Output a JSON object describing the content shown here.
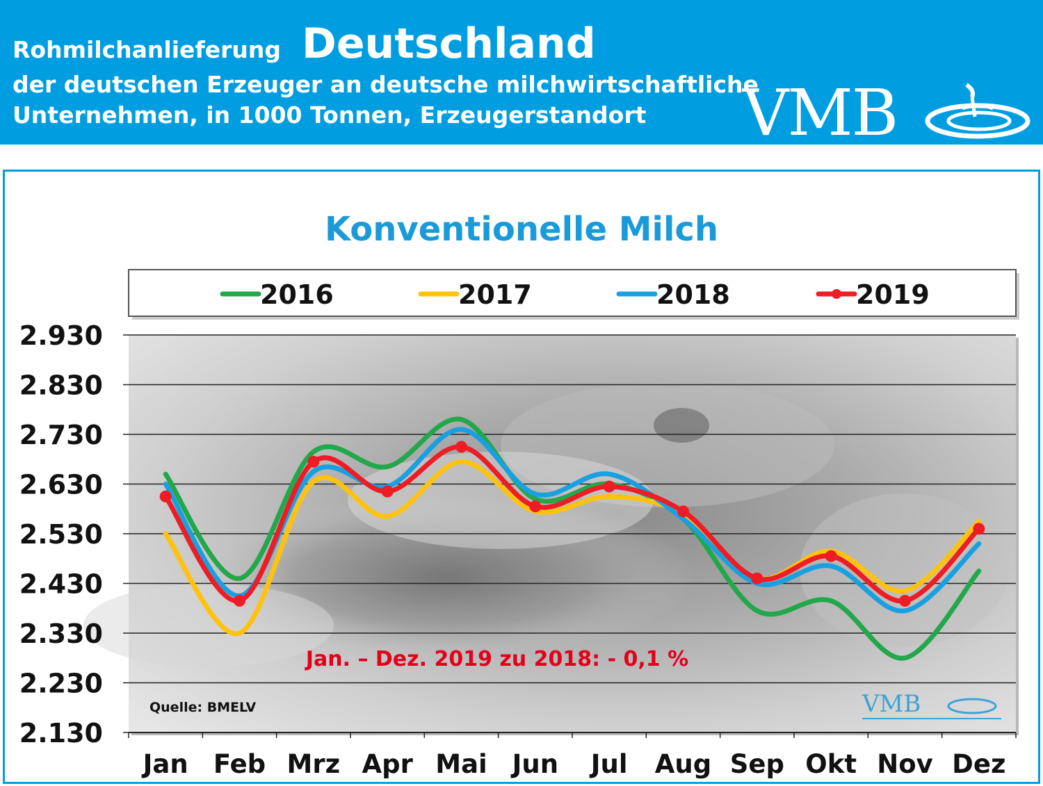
{
  "header": {
    "prefix": "Rohmilchanlieferung",
    "country": "Deutschland",
    "line2": "der deutschen Erzeuger an deutsche milchwirtschaftliche",
    "line3": "Unternehmen, in 1000 Tonnen, Erzeugerstandort",
    "logo": "VMB"
  },
  "colors": {
    "banner": "#009ee0",
    "title": "#1a9ad9",
    "s2016": "#22a84a",
    "s2017": "#ffc20e",
    "s2018": "#1aa0e0",
    "s2019": "#ee1c24",
    "annotation": "#e3001b"
  },
  "chart_data": {
    "type": "line",
    "title": "Konventionelle Milch",
    "categories": [
      "Jan",
      "Feb",
      "Mrz",
      "Apr",
      "Mai",
      "Jun",
      "Jul",
      "Aug",
      "Sep",
      "Okt",
      "Nov",
      "Dez"
    ],
    "yticks": [
      "2.930",
      "2.830",
      "2.730",
      "2.630",
      "2.530",
      "2.430",
      "2.330",
      "2.230",
      "2.130"
    ],
    "ylim": [
      2130,
      2930
    ],
    "grid": true,
    "legend": "top",
    "series": [
      {
        "name": "2016",
        "color": "#22a84a",
        "markers": false,
        "values": [
          2650,
          2440,
          2695,
          2665,
          2760,
          2600,
          2630,
          2560,
          2375,
          2395,
          2280,
          2455
        ]
      },
      {
        "name": "2017",
        "color": "#ffc20e",
        "markers": false,
        "values": [
          2530,
          2330,
          2635,
          2565,
          2675,
          2575,
          2605,
          2570,
          2440,
          2495,
          2415,
          2555
        ]
      },
      {
        "name": "2018",
        "color": "#1aa0e0",
        "markers": false,
        "values": [
          2630,
          2405,
          2655,
          2625,
          2740,
          2610,
          2650,
          2560,
          2430,
          2465,
          2375,
          2510
        ]
      },
      {
        "name": "2019",
        "color": "#ee1c24",
        "markers": true,
        "values": [
          2605,
          2395,
          2675,
          2615,
          2705,
          2585,
          2625,
          2575,
          2440,
          2485,
          2395,
          2540
        ]
      }
    ],
    "annotation": "Jan. – Dez. 2019 zu 2018: - 0,1 %",
    "source": "Quelle: BMELV",
    "watermark": "VMB"
  }
}
